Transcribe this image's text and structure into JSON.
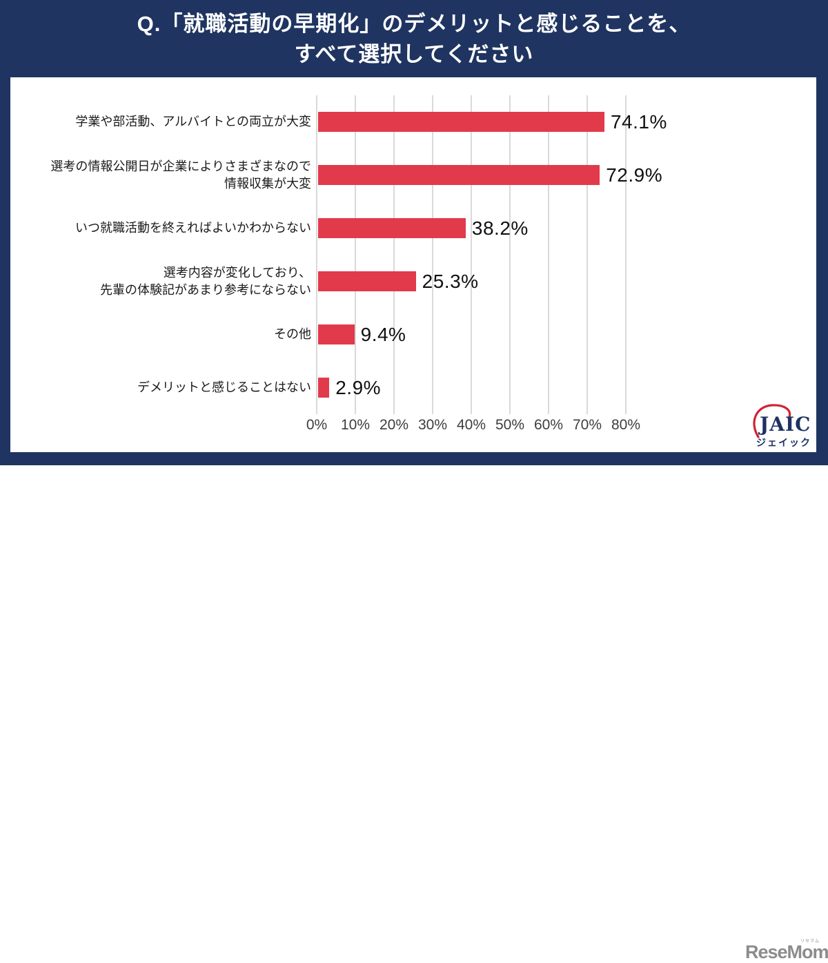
{
  "header": {
    "title_line1": "Q.「就職活動の早期化」のデメリットと感じることを、",
    "title_line2": "すべて選択してください"
  },
  "chart_data": {
    "type": "bar",
    "orientation": "horizontal",
    "title": "Q.「就職活動の早期化」のデメリットと感じることを、すべて選択してください",
    "categories": [
      "学業や部活動、アルバイトとの両立が大変",
      "選考の情報公開日が企業によりさまざまなので\n情報収集が大変",
      "いつ就職活動を終えればよいかわからない",
      "選考内容が変化しており、\n先輩の体験記があまり参考にならない",
      "その他",
      "デメリットと感じることはない"
    ],
    "values": [
      74.1,
      72.9,
      38.2,
      25.3,
      9.4,
      2.9
    ],
    "value_labels": [
      "74.1%",
      "72.9%",
      "38.2%",
      "25.3%",
      "9.4%",
      "2.9%"
    ],
    "x_ticks": [
      "0%",
      "10%",
      "20%",
      "30%",
      "40%",
      "50%",
      "60%",
      "70%",
      "80%"
    ],
    "xlim": [
      0,
      80
    ],
    "xlabel": "",
    "ylabel": "",
    "grid": true,
    "legend": false,
    "bar_color": "#e13a4b",
    "gridline_color": "#d9d9d9",
    "background_color": "#1f3460"
  },
  "logos": {
    "jaic_text": "JAIC",
    "jaic_subtext": "ジェイック",
    "resemom_text": "ReseMom.",
    "resemom_ruby": "リセマム"
  }
}
